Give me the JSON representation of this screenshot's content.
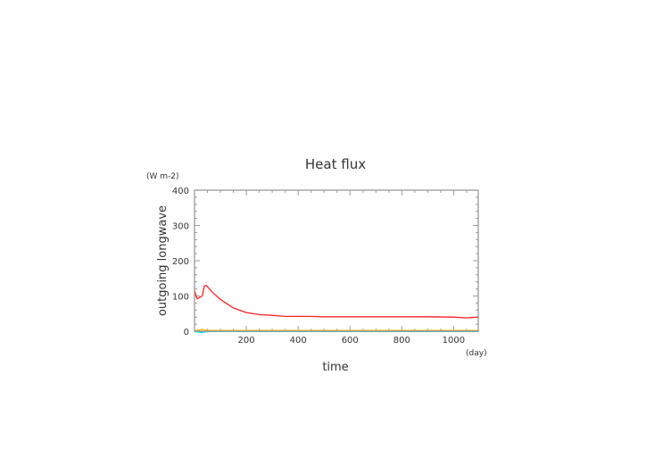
{
  "chart_data": {
    "type": "line",
    "title": "Heat flux",
    "xlabel": "time",
    "xunit": "(day)",
    "ylabel": "outgoing longwave",
    "yunit": "(W m-2)",
    "xlim": [
      0,
      1095
    ],
    "ylim": [
      0,
      400
    ],
    "xticks": [
      200,
      400,
      600,
      800,
      1000
    ],
    "yticks": [
      0,
      100,
      200,
      300,
      400
    ],
    "grid": false,
    "series": [
      {
        "name": "series-red",
        "color": "#ff2020",
        "x": [
          0,
          10,
          20,
          30,
          38,
          45,
          55,
          70,
          100,
          150,
          200,
          250,
          300,
          350,
          400,
          450,
          500,
          600,
          700,
          800,
          900,
          1000,
          1050,
          1095
        ],
        "y": [
          115,
          92,
          96,
          100,
          128,
          130,
          122,
          110,
          90,
          66,
          53,
          47,
          45,
          42,
          42,
          42,
          41,
          41,
          41,
          41,
          41,
          40,
          38,
          40
        ]
      },
      {
        "name": "series-orange",
        "color": "#ffb000",
        "x": [
          0,
          20,
          30,
          40,
          60,
          200,
          600,
          1095
        ],
        "y": [
          2,
          3,
          6,
          3,
          2,
          2,
          2,
          2
        ]
      },
      {
        "name": "series-blue",
        "color": "#2050c0",
        "x": [
          0,
          20,
          60,
          1095
        ],
        "y": [
          0,
          -1,
          -1,
          0
        ]
      },
      {
        "name": "series-cyan",
        "color": "#00e0f0",
        "x": [
          0,
          20,
          30,
          40,
          60,
          1095
        ],
        "y": [
          -1,
          -3,
          -4,
          -2,
          -1,
          -1
        ]
      }
    ]
  }
}
